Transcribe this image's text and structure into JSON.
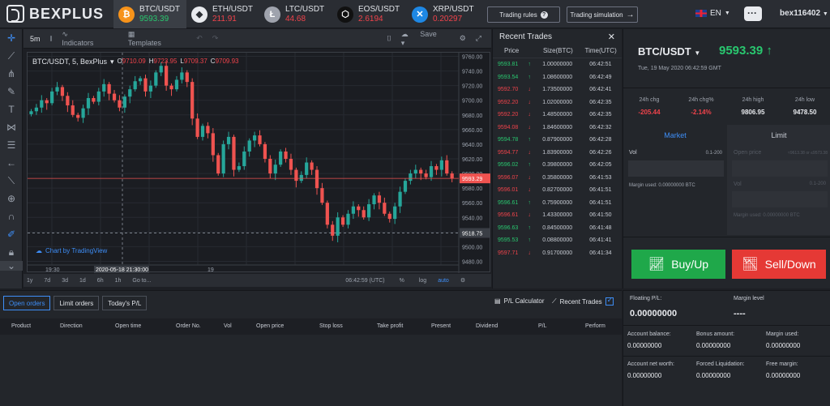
{
  "brand": {
    "name": "BEXPLUS"
  },
  "tickers": [
    {
      "name": "BTC/USDT",
      "price": "9593.39",
      "dir": "up",
      "icon": "bitcoin-icon",
      "glyph": "₿",
      "color": "#f7931a"
    },
    {
      "name": "ETH/USDT",
      "price": "211.91",
      "dir": "down",
      "icon": "ethereum-icon",
      "glyph": "◆",
      "color": "#e8eaee"
    },
    {
      "name": "LTC/USDT",
      "price": "44.68",
      "dir": "down",
      "icon": "litecoin-icon",
      "glyph": "Ł",
      "color": "#9fa3ad"
    },
    {
      "name": "EOS/USDT",
      "price": "2.6194",
      "dir": "down",
      "icon": "eos-icon",
      "glyph": "⬡",
      "color": "#111111"
    },
    {
      "name": "XRP/USDT",
      "price": "0.20297",
      "dir": "down",
      "icon": "ripple-icon",
      "glyph": "✕",
      "color": "#1e88e5"
    }
  ],
  "header": {
    "trading_rules": "Trading rules",
    "trading_sim": "Trading simulation",
    "lang": "EN",
    "user": "bex116402"
  },
  "chartbar": {
    "interval": "5m",
    "indicators": "Indicators",
    "templates": "Templates",
    "save": "Save"
  },
  "chart_legend": {
    "title": "BTC/USDT, 5, BexPlus",
    "o": "9710.09",
    "h": "9723.95",
    "l": "9709.37",
    "c": "9709.93"
  },
  "chart_data": {
    "type": "candlestick",
    "ylim": [
      9475,
      9765
    ],
    "yticks": [
      "9760.00",
      "9740.00",
      "9720.00",
      "9700.00",
      "9680.00",
      "9660.00",
      "9640.00",
      "9620.00",
      "9600.00",
      "9580.00",
      "9560.00",
      "9540.00",
      "9520.00",
      "9500.00",
      "9480.00"
    ],
    "xticks": [
      "19:30",
      "2020-05-18 21:30:00",
      "19"
    ],
    "current_price_label": "9593.29",
    "crosshair_price_label": "9518.75",
    "watermark": "Chart by TradingView",
    "closes": [
      9685,
      9690,
      9700,
      9696,
      9712,
      9718,
      9706,
      9693,
      9680,
      9676,
      9689,
      9703,
      9698,
      9712,
      9722,
      9709,
      9700,
      9690,
      9705,
      9715,
      9726,
      9730,
      9712,
      9720,
      9738,
      9747,
      9720,
      9715,
      9728,
      9738,
      9725,
      9675,
      9650,
      9665,
      9655,
      9625,
      9600,
      9640,
      9650,
      9605,
      9610,
      9630,
      9645,
      9652,
      9640,
      9620,
      9600,
      9612,
      9630,
      9620,
      9605,
      9590,
      9598,
      9615,
      9605,
      9580,
      9560,
      9530,
      9515,
      9540,
      9530,
      9545,
      9555,
      9550,
      9540,
      9558,
      9570,
      9560,
      9545,
      9538,
      9555,
      9575,
      9590,
      9600,
      9605,
      9600,
      9595,
      9610,
      9605,
      9618,
      9600,
      9593
    ]
  },
  "chart_footer": {
    "ranges": [
      "1y",
      "7d",
      "3d",
      "1d",
      "6h",
      "1h",
      "Go to..."
    ],
    "time": "06:42:59 (UTC)",
    "pct": "%",
    "log": "log",
    "auto": "auto"
  },
  "trades": {
    "title": "Recent Trades",
    "cols": [
      "Price",
      "Size(BTC)",
      "Time(UTC)"
    ],
    "rows": [
      {
        "p": "9593.81",
        "d": "up",
        "s": "1.00000000",
        "t": "06:42:51"
      },
      {
        "p": "9593.54",
        "d": "up",
        "s": "1.08600000",
        "t": "06:42:49"
      },
      {
        "p": "9592.70",
        "d": "down",
        "s": "1.73500000",
        "t": "06:42:41"
      },
      {
        "p": "9592.20",
        "d": "down",
        "s": "1.02000000",
        "t": "06:42:35"
      },
      {
        "p": "9592.20",
        "d": "down",
        "s": "1.48500000",
        "t": "06:42:35"
      },
      {
        "p": "9594.08",
        "d": "down",
        "s": "1.84600000",
        "t": "06:42:32"
      },
      {
        "p": "9594.78",
        "d": "up",
        "s": "0.87900000",
        "t": "06:42:28"
      },
      {
        "p": "9594.77",
        "d": "down",
        "s": "1.83900000",
        "t": "06:42:26"
      },
      {
        "p": "9596.02",
        "d": "up",
        "s": "0.39800000",
        "t": "06:42:05"
      },
      {
        "p": "9596.07",
        "d": "down",
        "s": "0.35800000",
        "t": "06:41:53"
      },
      {
        "p": "9596.01",
        "d": "down",
        "s": "0.82700000",
        "t": "06:41:51"
      },
      {
        "p": "9596.61",
        "d": "up",
        "s": "0.75900000",
        "t": "06:41:51"
      },
      {
        "p": "9596.61",
        "d": "down",
        "s": "1.43300000",
        "t": "06:41:50"
      },
      {
        "p": "9596.63",
        "d": "up",
        "s": "0.84500000",
        "t": "06:41:48"
      },
      {
        "p": "9595.53",
        "d": "up",
        "s": "0.08800000",
        "t": "06:41:41"
      },
      {
        "p": "9597.71",
        "d": "down",
        "s": "0.91700000",
        "t": "06:41:34"
      }
    ]
  },
  "symbol": {
    "name": "BTC/USDT",
    "price": "9593.39",
    "time": "Tue, 19 May 2020 06:42:59 GMT"
  },
  "stats": [
    {
      "label": "24h chg",
      "value": "-205.44",
      "cls": "down"
    },
    {
      "label": "24h chg%",
      "value": "-2.14%",
      "cls": "down"
    },
    {
      "label": "24h high",
      "value": "9806.95",
      "cls": "plain"
    },
    {
      "label": "24h low",
      "value": "9478.50",
      "cls": "plain"
    }
  ],
  "order": {
    "market_tab": "Market",
    "limit_tab": "Limit",
    "vol": "Vol",
    "vol_range": "0.1-200",
    "margin_used": "Margin used: 0.00000000 BTC",
    "open_price": "Open price",
    "open_price_range": "≈9613.38 or ≤9573.38",
    "limit_vol": "Vol",
    "limit_vol_range": "0.1-200",
    "limit_margin": "Margin used: 0.00000000 BTC",
    "buy": "Buy/Up",
    "sell": "Sell/Down"
  },
  "bottom": {
    "tabs": [
      "Open orders",
      "Limit orders",
      "Today's P/L"
    ],
    "pl_calc": "P/L Calculator",
    "recent_trades": "Recent Trades",
    "cols": [
      "Product",
      "Direction",
      "Open time",
      "Order No.",
      "Vol",
      "Open price",
      "Stop loss",
      "Take profit",
      "Present",
      "Dividend",
      "P/L",
      "Perform"
    ]
  },
  "account": {
    "floating_label": "Floating P/L:",
    "floating_value": "0.00000000",
    "margin_level_label": "Margin level",
    "margin_level_value": "----",
    "balance_label": "Account balance:",
    "balance_value": "0.00000000",
    "bonus_label": "Bonus amount:",
    "bonus_value": "0.00000000",
    "margin_label": "Margin used:",
    "margin_value": "0.00000000",
    "networth_label": "Account net worth:",
    "networth_value": "0.00000000",
    "forced_label": "Forced Liquidation:",
    "forced_value": "0.00000000",
    "free_label": "Free margin:",
    "free_value": "0.00000000"
  }
}
